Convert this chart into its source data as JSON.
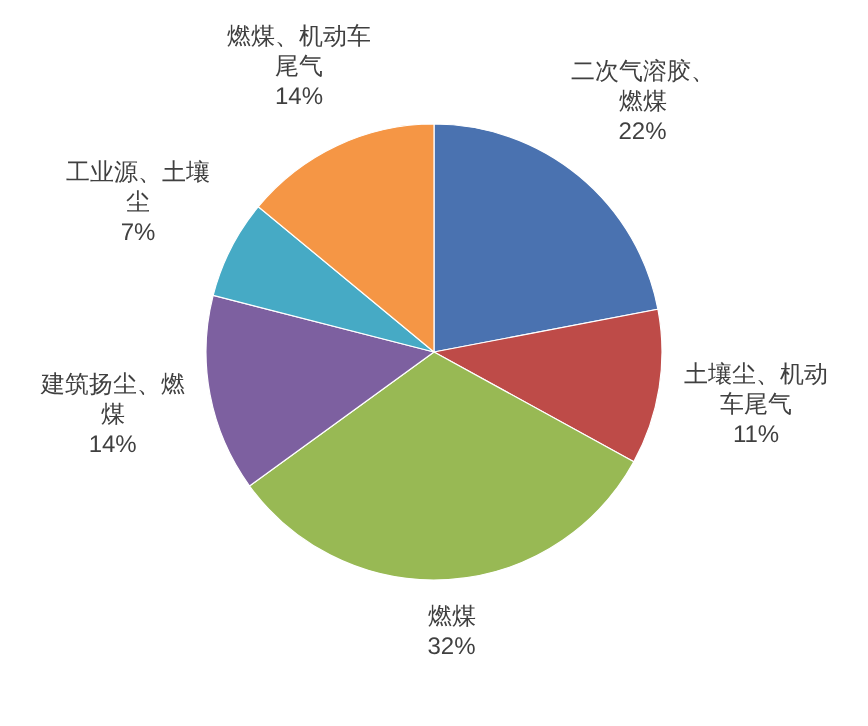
{
  "chart_data": {
    "type": "pie",
    "categories": [
      "二次气溶胶、燃煤",
      "土壤尘、机动车尾气",
      "燃煤",
      "建筑扬尘、燃煤",
      "工业源、土壤尘",
      "燃煤、机动车尾气"
    ],
    "values": [
      22,
      11,
      32,
      14,
      7,
      14
    ],
    "colors": [
      "#4a72b0",
      "#be4b48",
      "#98b954",
      "#7d60a0",
      "#46aac5",
      "#f59645"
    ],
    "value_labels": [
      "22%",
      "11%",
      "32%",
      "14%",
      "7%",
      "14%"
    ]
  }
}
